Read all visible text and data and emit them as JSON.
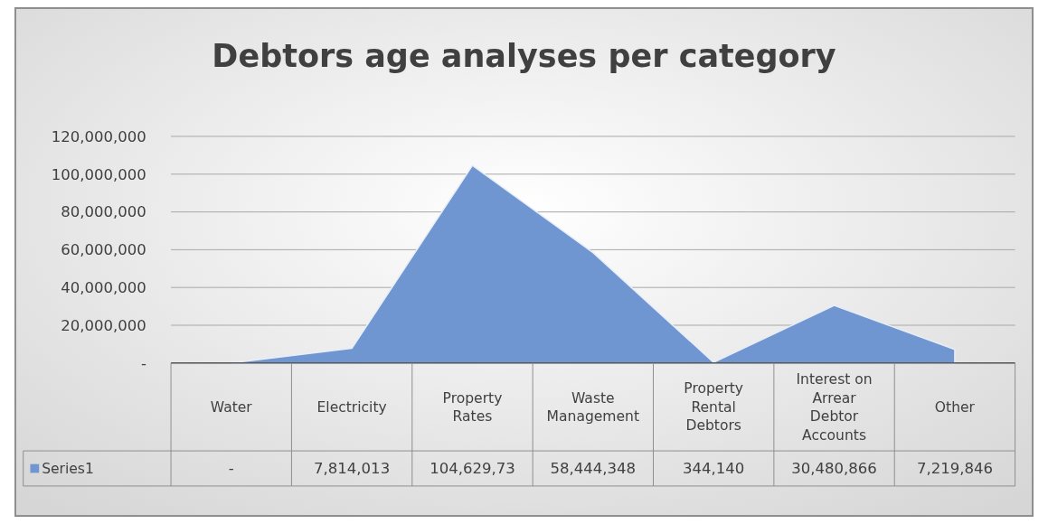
{
  "chart_data": {
    "type": "area",
    "title": "Debtors age analyses per category",
    "categories": [
      "Water",
      "Electricity",
      "Property Rates",
      "Waste Management",
      "Property Rental Debtors",
      "Interest on Arrear Debtor Accounts",
      "Other"
    ],
    "series": [
      {
        "name": "Series1",
        "color": "#6f96d1",
        "values": [
          0,
          7814013,
          104600000,
          58444348,
          344140,
          30480866,
          7219846
        ],
        "value_labels": [
          "-",
          "7,814,013",
          "104,629,73",
          "58,444,348",
          "344,140",
          "30,480,866",
          "7,219,846"
        ]
      }
    ],
    "ylim": [
      0,
      120000000
    ],
    "yticks": [
      {
        "value": 0,
        "label": "-"
      },
      {
        "value": 20000000,
        "label": "20,000,000"
      },
      {
        "value": 40000000,
        "label": "40,000,000"
      },
      {
        "value": 60000000,
        "label": "60,000,000"
      },
      {
        "value": 80000000,
        "label": "80,000,000"
      },
      {
        "value": 100000000,
        "label": "100,000,000"
      },
      {
        "value": 120000000,
        "label": "120,000,000"
      }
    ],
    "grid": "y",
    "legend": "bottom left"
  }
}
